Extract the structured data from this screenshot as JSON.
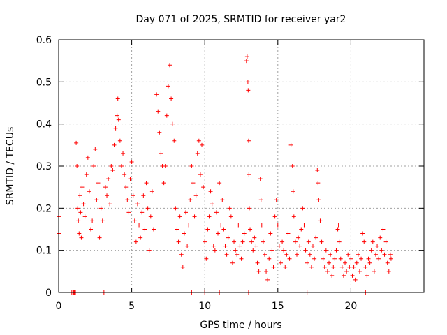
{
  "chart_data": {
    "type": "scatter",
    "title": "Day 071 of 2025, SRMTID for receiver yar2",
    "xlabel": "GPS time / hours",
    "ylabel": "SRMTID / TECUs",
    "xlim": [
      0,
      25
    ],
    "ylim": [
      0,
      0.6
    ],
    "xticks": [
      0,
      5,
      10,
      15,
      20
    ],
    "xtick_labels": [
      "0",
      "5",
      "10",
      "15",
      "20"
    ],
    "yticks": [
      0,
      0.1,
      0.2,
      0.3,
      0.4,
      0.5,
      0.6
    ],
    "ytick_labels": [
      "0",
      "0.1",
      "0.2",
      "0.3",
      "0.4",
      "0.5",
      "0.6"
    ],
    "grid": true,
    "marker": "+",
    "color": "#ff0000",
    "series": [
      {
        "name": "yar2",
        "points": [
          [
            0.0,
            0.18
          ],
          [
            0.02,
            0.14
          ],
          [
            0.9,
            0.0
          ],
          [
            1.0,
            0.0
          ],
          [
            1.05,
            0.0
          ],
          [
            1.1,
            0.0
          ],
          [
            1.15,
            0.0
          ],
          [
            3.1,
            0.0
          ],
          [
            9.1,
            0.0
          ],
          [
            10.0,
            0.0
          ],
          [
            11.0,
            0.0
          ],
          [
            13.0,
            0.0
          ],
          [
            17.0,
            0.0
          ],
          [
            21.0,
            0.0
          ],
          [
            1.2,
            0.355
          ],
          [
            1.25,
            0.3
          ],
          [
            1.3,
            0.2
          ],
          [
            1.35,
            0.17
          ],
          [
            1.4,
            0.14
          ],
          [
            1.45,
            0.23
          ],
          [
            1.5,
            0.19
          ],
          [
            1.55,
            0.13
          ],
          [
            1.6,
            0.25
          ],
          [
            1.7,
            0.21
          ],
          [
            1.8,
            0.18
          ],
          [
            1.9,
            0.28
          ],
          [
            2.0,
            0.32
          ],
          [
            2.1,
            0.24
          ],
          [
            2.2,
            0.15
          ],
          [
            2.3,
            0.17
          ],
          [
            2.4,
            0.3
          ],
          [
            2.5,
            0.34
          ],
          [
            2.6,
            0.22
          ],
          [
            2.7,
            0.26
          ],
          [
            2.8,
            0.13
          ],
          [
            2.9,
            0.2
          ],
          [
            3.0,
            0.17
          ],
          [
            3.2,
            0.25
          ],
          [
            3.3,
            0.23
          ],
          [
            3.4,
            0.27
          ],
          [
            3.5,
            0.21
          ],
          [
            3.6,
            0.3
          ],
          [
            3.7,
            0.29
          ],
          [
            3.8,
            0.35
          ],
          [
            3.9,
            0.39
          ],
          [
            4.0,
            0.42
          ],
          [
            4.05,
            0.46
          ],
          [
            4.1,
            0.41
          ],
          [
            4.2,
            0.36
          ],
          [
            4.3,
            0.3
          ],
          [
            4.4,
            0.33
          ],
          [
            4.5,
            0.28
          ],
          [
            4.6,
            0.25
          ],
          [
            4.7,
            0.22
          ],
          [
            4.8,
            0.19
          ],
          [
            4.9,
            0.27
          ],
          [
            5.0,
            0.31
          ],
          [
            5.1,
            0.23
          ],
          [
            5.2,
            0.17
          ],
          [
            5.3,
            0.12
          ],
          [
            5.4,
            0.21
          ],
          [
            5.5,
            0.16
          ],
          [
            5.6,
            0.13
          ],
          [
            5.7,
            0.19
          ],
          [
            5.8,
            0.23
          ],
          [
            5.9,
            0.15
          ],
          [
            6.0,
            0.26
          ],
          [
            6.1,
            0.2
          ],
          [
            6.2,
            0.1
          ],
          [
            6.3,
            0.18
          ],
          [
            6.4,
            0.24
          ],
          [
            6.5,
            0.15
          ],
          [
            6.7,
            0.47
          ],
          [
            6.8,
            0.43
          ],
          [
            6.9,
            0.38
          ],
          [
            7.0,
            0.33
          ],
          [
            7.1,
            0.3
          ],
          [
            7.2,
            0.26
          ],
          [
            7.3,
            0.3
          ],
          [
            7.4,
            0.42
          ],
          [
            7.5,
            0.49
          ],
          [
            7.6,
            0.54
          ],
          [
            7.7,
            0.46
          ],
          [
            7.8,
            0.4
          ],
          [
            7.9,
            0.36
          ],
          [
            8.0,
            0.2
          ],
          [
            8.1,
            0.15
          ],
          [
            8.2,
            0.12
          ],
          [
            8.3,
            0.18
          ],
          [
            8.4,
            0.09
          ],
          [
            8.5,
            0.06
          ],
          [
            8.6,
            0.14
          ],
          [
            8.7,
            0.19
          ],
          [
            8.8,
            0.11
          ],
          [
            8.9,
            0.16
          ],
          [
            9.0,
            0.22
          ],
          [
            9.1,
            0.3
          ],
          [
            9.2,
            0.26
          ],
          [
            9.3,
            0.18
          ],
          [
            9.4,
            0.23
          ],
          [
            9.5,
            0.33
          ],
          [
            9.6,
            0.36
          ],
          [
            9.7,
            0.28
          ],
          [
            9.8,
            0.35
          ],
          [
            9.9,
            0.25
          ],
          [
            10.0,
            0.12
          ],
          [
            10.1,
            0.08
          ],
          [
            10.2,
            0.15
          ],
          [
            10.3,
            0.18
          ],
          [
            10.4,
            0.24
          ],
          [
            10.5,
            0.21
          ],
          [
            10.6,
            0.11
          ],
          [
            10.7,
            0.1
          ],
          [
            10.8,
            0.19
          ],
          [
            10.9,
            0.14
          ],
          [
            11.0,
            0.26
          ],
          [
            11.1,
            0.16
          ],
          [
            11.2,
            0.22
          ],
          [
            11.3,
            0.15
          ],
          [
            11.4,
            0.11
          ],
          [
            11.5,
            0.09
          ],
          [
            11.6,
            0.13
          ],
          [
            11.7,
            0.2
          ],
          [
            11.8,
            0.18
          ],
          [
            11.9,
            0.07
          ],
          [
            12.0,
            0.12
          ],
          [
            12.1,
            0.1
          ],
          [
            12.2,
            0.09
          ],
          [
            12.3,
            0.16
          ],
          [
            12.4,
            0.11
          ],
          [
            12.5,
            0.08
          ],
          [
            12.6,
            0.12
          ],
          [
            12.7,
            0.14
          ],
          [
            12.85,
            0.55
          ],
          [
            12.9,
            0.56
          ],
          [
            12.95,
            0.5
          ],
          [
            12.97,
            0.48
          ],
          [
            13.0,
            0.36
          ],
          [
            13.02,
            0.28
          ],
          [
            13.05,
            0.2
          ],
          [
            13.1,
            0.15
          ],
          [
            13.2,
            0.12
          ],
          [
            13.3,
            0.1
          ],
          [
            13.4,
            0.13
          ],
          [
            13.5,
            0.11
          ],
          [
            13.6,
            0.07
          ],
          [
            13.7,
            0.05
          ],
          [
            13.8,
            0.27
          ],
          [
            13.85,
            0.22
          ],
          [
            13.9,
            0.16
          ],
          [
            14.0,
            0.12
          ],
          [
            14.1,
            0.09
          ],
          [
            14.2,
            0.05
          ],
          [
            14.3,
            0.03
          ],
          [
            14.4,
            0.08
          ],
          [
            14.5,
            0.14
          ],
          [
            14.6,
            0.1
          ],
          [
            14.7,
            0.06
          ],
          [
            14.8,
            0.18
          ],
          [
            14.9,
            0.22
          ],
          [
            15.0,
            0.16
          ],
          [
            15.1,
            0.11
          ],
          [
            15.2,
            0.07
          ],
          [
            15.3,
            0.12
          ],
          [
            15.4,
            0.1
          ],
          [
            15.5,
            0.06
          ],
          [
            15.6,
            0.09
          ],
          [
            15.7,
            0.14
          ],
          [
            15.8,
            0.08
          ],
          [
            15.9,
            0.35
          ],
          [
            16.0,
            0.3
          ],
          [
            16.05,
            0.24
          ],
          [
            16.1,
            0.18
          ],
          [
            16.2,
            0.12
          ],
          [
            16.3,
            0.09
          ],
          [
            16.4,
            0.13
          ],
          [
            16.5,
            0.11
          ],
          [
            16.6,
            0.15
          ],
          [
            16.7,
            0.2
          ],
          [
            16.8,
            0.16
          ],
          [
            16.9,
            0.1
          ],
          [
            17.0,
            0.07
          ],
          [
            17.1,
            0.12
          ],
          [
            17.2,
            0.09
          ],
          [
            17.3,
            0.06
          ],
          [
            17.4,
            0.11
          ],
          [
            17.5,
            0.08
          ],
          [
            17.6,
            0.13
          ],
          [
            17.7,
            0.29
          ],
          [
            17.75,
            0.26
          ],
          [
            17.8,
            0.22
          ],
          [
            17.9,
            0.17
          ],
          [
            18.0,
            0.12
          ],
          [
            18.1,
            0.08
          ],
          [
            18.2,
            0.06
          ],
          [
            18.3,
            0.1
          ],
          [
            18.4,
            0.05
          ],
          [
            18.5,
            0.07
          ],
          [
            18.6,
            0.09
          ],
          [
            18.7,
            0.04
          ],
          [
            18.8,
            0.06
          ],
          [
            18.9,
            0.08
          ],
          [
            19.0,
            0.1
          ],
          [
            19.1,
            0.15
          ],
          [
            19.15,
            0.16
          ],
          [
            19.2,
            0.12
          ],
          [
            19.3,
            0.08
          ],
          [
            19.4,
            0.06
          ],
          [
            19.5,
            0.04
          ],
          [
            19.6,
            0.07
          ],
          [
            19.7,
            0.05
          ],
          [
            19.8,
            0.09
          ],
          [
            19.9,
            0.06
          ],
          [
            20.0,
            0.08
          ],
          [
            20.1,
            0.04
          ],
          [
            20.2,
            0.06
          ],
          [
            20.3,
            0.03
          ],
          [
            20.4,
            0.07
          ],
          [
            20.5,
            0.09
          ],
          [
            20.6,
            0.05
          ],
          [
            20.7,
            0.08
          ],
          [
            20.8,
            0.14
          ],
          [
            20.9,
            0.12
          ],
          [
            21.0,
            0.06
          ],
          [
            21.1,
            0.04
          ],
          [
            21.2,
            0.08
          ],
          [
            21.3,
            0.07
          ],
          [
            21.4,
            0.1
          ],
          [
            21.5,
            0.12
          ],
          [
            21.6,
            0.05
          ],
          [
            21.7,
            0.09
          ],
          [
            21.8,
            0.11
          ],
          [
            21.9,
            0.08
          ],
          [
            22.0,
            0.13
          ],
          [
            22.1,
            0.1
          ],
          [
            22.2,
            0.15
          ],
          [
            22.3,
            0.09
          ],
          [
            22.4,
            0.12
          ],
          [
            22.5,
            0.07
          ],
          [
            22.6,
            0.05
          ],
          [
            22.7,
            0.09
          ],
          [
            22.75,
            0.08
          ]
        ]
      }
    ]
  }
}
